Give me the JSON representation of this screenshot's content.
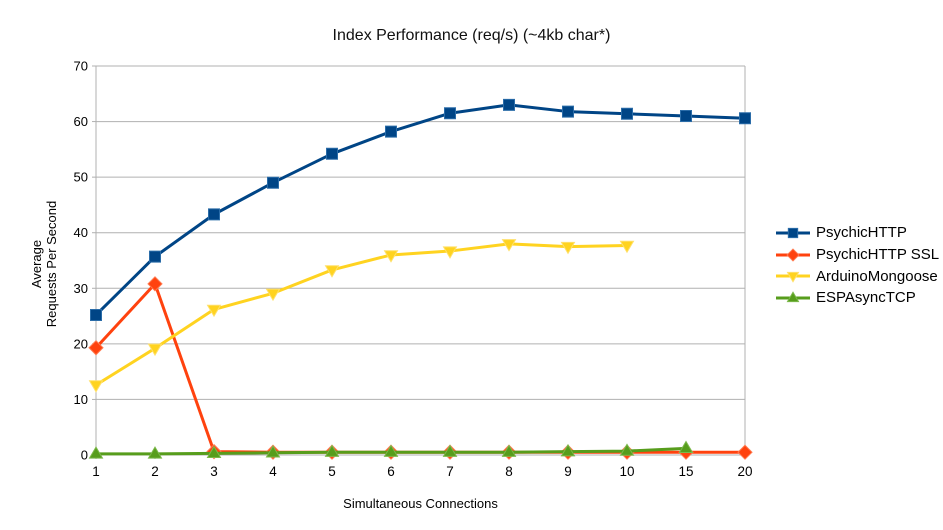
{
  "title": "Index Performance (req/s) (~4kb char*)",
  "chart_data": {
    "type": "line",
    "title": "Index Performance (req/s) (~4kb char*)",
    "xlabel": "Simultaneous Connections",
    "ylabel": "Average\nRequests Per Second",
    "categories": [
      "1",
      "2",
      "3",
      "4",
      "5",
      "6",
      "7",
      "8",
      "9",
      "10",
      "15",
      "20"
    ],
    "y_ticks": [
      0,
      10,
      20,
      30,
      40,
      50,
      60,
      70
    ],
    "ylim": [
      0,
      70
    ],
    "grid": "horizontal",
    "legend_position": "right",
    "series": [
      {
        "name": "PsychicHTTP",
        "color": "#004586",
        "marker_edge": "#2a6ca8",
        "marker": "square",
        "values": [
          25.2,
          35.7,
          43.3,
          49.0,
          54.2,
          58.2,
          61.5,
          63.0,
          61.8,
          61.4,
          61.0,
          60.6
        ]
      },
      {
        "name": "PsychicHTTP SSL",
        "color": "#FF420E",
        "marker_edge": "#ff7a50",
        "marker": "diamond",
        "values": [
          19.3,
          30.8,
          0.6,
          0.5,
          0.5,
          0.5,
          0.5,
          0.5,
          0.5,
          0.5,
          0.5,
          0.5
        ]
      },
      {
        "name": "ArduinoMongoose",
        "color": "#FFD320",
        "marker_edge": "#ffe06a",
        "marker": "triangle-down",
        "values": [
          12.6,
          19.2,
          26.2,
          29.1,
          33.3,
          36.0,
          36.7,
          38.0,
          37.5,
          37.7
        ]
      },
      {
        "name": "ESPAsyncTCP",
        "color": "#579D1C",
        "marker_edge": "#7bb84a",
        "marker": "triangle-up",
        "values": [
          0.2,
          0.2,
          0.3,
          0.4,
          0.5,
          0.5,
          0.5,
          0.5,
          0.6,
          0.7,
          1.2
        ]
      }
    ],
    "axis_color": "#b0b0b0",
    "text_color": "#000000"
  }
}
